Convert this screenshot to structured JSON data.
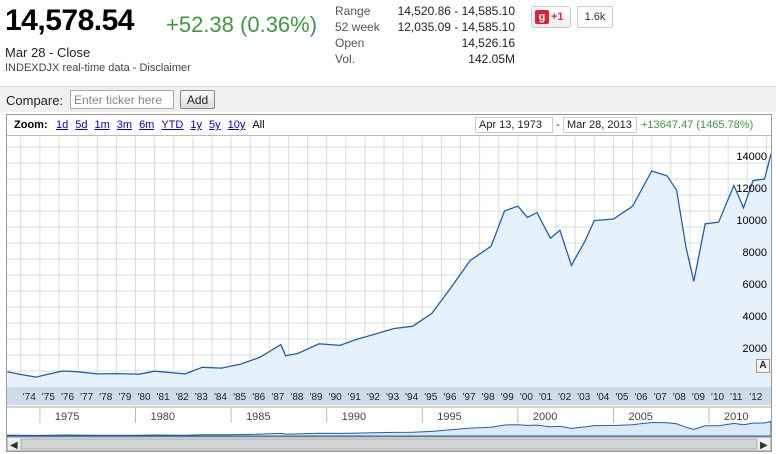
{
  "quote": {
    "price": "14,578.54",
    "change": "+52.38 (0.36%)",
    "date_close": "Mar 28 - Close",
    "source": "INDEXDJX real-time data - Disclaimer"
  },
  "stats": [
    {
      "label": "Range",
      "value": "14,520.86 - 14,585.10"
    },
    {
      "label": "52 week",
      "value": "12,035.09 - 14,585.10"
    },
    {
      "label": "Open",
      "value": "14,526.16"
    },
    {
      "label": "Vol.",
      "value": "142.05M"
    }
  ],
  "social": {
    "plus_label": "+1",
    "count": "1.6k"
  },
  "compare": {
    "label": "Compare:",
    "placeholder": "Enter ticker here",
    "add_label": "Add"
  },
  "zoom": {
    "label": "Zoom:",
    "options": [
      "1d",
      "5d",
      "1m",
      "3m",
      "6m",
      "YTD",
      "1y",
      "5y",
      "10y",
      "All"
    ],
    "active": "All",
    "range_start": "Apr 13, 1973",
    "range_sep": "-",
    "range_end": "Mar 28, 2013",
    "range_change": "+13647.47 (1465.78%)"
  },
  "colors": {
    "up": "#3c9a3c",
    "line": "#1f5fb0",
    "fill": "#e6f2fb",
    "link": "#0000cc"
  },
  "chart_data": {
    "type": "area",
    "title": "",
    "xlabel": "",
    "ylabel": "",
    "ylim": [
      0,
      15000
    ],
    "xlim": [
      1973.28,
      2013.24
    ],
    "yticks": [
      2000,
      4000,
      6000,
      8000,
      10000,
      12000,
      14000
    ],
    "xtick_labels": [
      "'74",
      "'75",
      "'76",
      "'77",
      "'78",
      "'79",
      "'80",
      "'81",
      "'82",
      "'83",
      "'84",
      "'85",
      "'86",
      "'87",
      "'88",
      "'89",
      "'90",
      "'91",
      "'92",
      "'93",
      "'94",
      "'95",
      "'96",
      "'97",
      "'98",
      "'99",
      "'00",
      "'01",
      "'02",
      "'03",
      "'04",
      "'05",
      "'06",
      "'07",
      "'08",
      "'09",
      "'10",
      "'11",
      "'12"
    ],
    "x": [
      1973.3,
      1974.0,
      1974.8,
      1975.5,
      1976.2,
      1977.0,
      1978.0,
      1979.0,
      1980.2,
      1981.0,
      1982.6,
      1983.5,
      1984.5,
      1985.5,
      1986.5,
      1987.6,
      1987.85,
      1988.5,
      1989.6,
      1990.7,
      1991.5,
      1992.5,
      1993.5,
      1994.5,
      1995.5,
      1996.5,
      1997.5,
      1998.6,
      1999.3,
      2000.0,
      2000.5,
      2001.0,
      2001.7,
      2002.2,
      2002.8,
      2003.5,
      2004.0,
      2005.0,
      2006.0,
      2007.0,
      2007.8,
      2008.3,
      2008.8,
      2009.2,
      2009.8,
      2010.5,
      2011.3,
      2011.8,
      2012.3,
      2012.9,
      2013.24
    ],
    "y": [
      950,
      780,
      620,
      820,
      1000,
      950,
      820,
      840,
      800,
      990,
      820,
      1230,
      1180,
      1430,
      1850,
      2650,
      1950,
      2100,
      2700,
      2600,
      2950,
      3300,
      3650,
      3800,
      4600,
      6200,
      7900,
      8800,
      11000,
      11300,
      10600,
      10900,
      9300,
      9800,
      7600,
      9100,
      10400,
      10500,
      11300,
      13500,
      13200,
      12300,
      8700,
      6600,
      10200,
      10300,
      12600,
      11200,
      12900,
      13000,
      14578
    ]
  },
  "navigator": {
    "labels": [
      "1975",
      "1980",
      "1985",
      "1990",
      "1995",
      "2000",
      "2005",
      "2010"
    ]
  }
}
